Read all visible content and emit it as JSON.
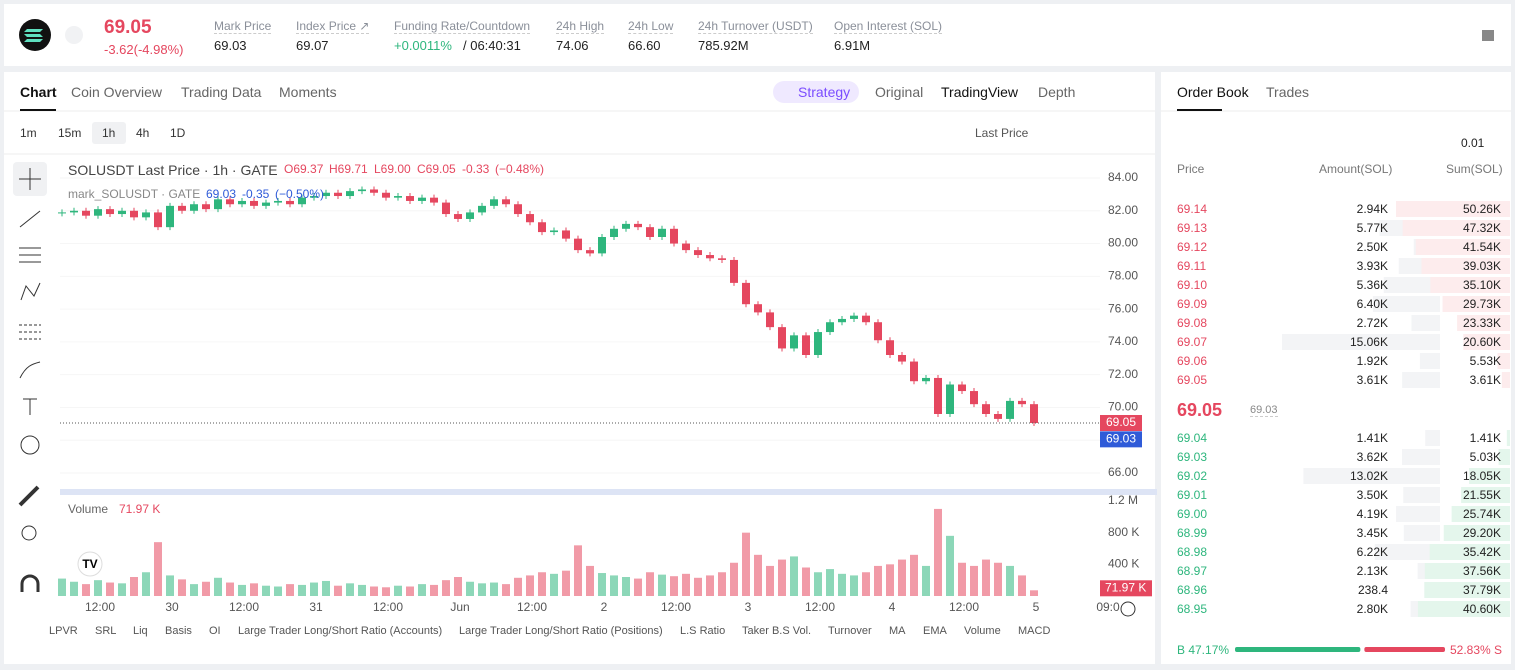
{
  "header": {
    "symbol_price": "69.05",
    "change": "-3.62(-4.98%)",
    "stats": [
      {
        "label": "Mark Price",
        "value": "69.03"
      },
      {
        "label": "Index Price ↗",
        "value": "69.07"
      },
      {
        "label": "Funding Rate/Countdown",
        "value": "+0.0011%",
        "extra": "/ 06:40:31"
      },
      {
        "label": "24h High",
        "value": "74.06"
      },
      {
        "label": "24h Low",
        "value": "66.60"
      },
      {
        "label": "24h Turnover (USDT)",
        "value": "785.92M"
      },
      {
        "label": "Open Interest (SOL)",
        "value": "6.91M"
      }
    ]
  },
  "tabs": [
    "Chart",
    "Coin Overview",
    "Trading Data",
    "Moments"
  ],
  "view_tabs": [
    "Strategy",
    "Original",
    "TradingView",
    "Depth"
  ],
  "timeframes": [
    "1m",
    "15m",
    "1h",
    "4h",
    "1D"
  ],
  "price_type": "Last Price",
  "indicators": [
    "LPVR",
    "SRL",
    "Liq",
    "Basis",
    "OI",
    "Large Trader Long/Short Ratio (Accounts)",
    "Large Trader Long/Short Ratio (Positions)",
    "L.S Ratio",
    "Taker B.S Vol.",
    "Turnover",
    "MA",
    "EMA",
    "Volume",
    "MACD"
  ],
  "chart_data": {
    "type": "candlestick",
    "legend": {
      "title": "SOLUSDT Last Price · 1h · GATE",
      "o": "O69.37",
      "h": "H69.71",
      "l": "L69.00",
      "c": "C69.05",
      "chg": "-0.33",
      "pct": "(−0.48%)",
      "mark": "mark_SOLUSDT · GATE",
      "mark_value": "69.03",
      "mark_chg": "-0.35",
      "mark_pct": "(−0.50%)"
    },
    "close": [
      81.9,
      82.0,
      81.7,
      82.1,
      81.8,
      82.0,
      81.6,
      81.9,
      81.0,
      82.3,
      82.0,
      82.4,
      82.1,
      82.7,
      82.4,
      82.6,
      82.3,
      82.5,
      82.6,
      82.4,
      82.8,
      82.9,
      83.1,
      82.9,
      83.2,
      83.3,
      83.1,
      82.8,
      82.9,
      82.6,
      82.8,
      82.5,
      81.8,
      81.5,
      81.9,
      82.3,
      82.7,
      82.4,
      81.8,
      81.3,
      80.7,
      80.8,
      80.3,
      79.6,
      79.4,
      80.4,
      80.9,
      81.2,
      81.0,
      80.4,
      80.9,
      80.0,
      79.6,
      79.3,
      79.1,
      79.0,
      77.6,
      76.3,
      75.8,
      74.9,
      73.6,
      74.4,
      73.2,
      74.6,
      75.2,
      75.4,
      75.6,
      75.2,
      74.1,
      73.2,
      72.8,
      71.6,
      71.8,
      69.6,
      71.4,
      71.0,
      70.2,
      69.6,
      69.3,
      70.4,
      70.2,
      69.05
    ],
    "volume": [
      220000,
      180000,
      150000,
      200000,
      170000,
      160000,
      240000,
      300000,
      680000,
      260000,
      210000,
      150000,
      180000,
      230000,
      170000,
      140000,
      160000,
      130000,
      120000,
      150000,
      140000,
      170000,
      190000,
      130000,
      160000,
      140000,
      120000,
      110000,
      130000,
      120000,
      150000,
      140000,
      200000,
      240000,
      180000,
      160000,
      170000,
      150000,
      230000,
      260000,
      300000,
      280000,
      320000,
      640000,
      380000,
      290000,
      260000,
      240000,
      220000,
      300000,
      270000,
      250000,
      280000,
      230000,
      260000,
      300000,
      420000,
      800000,
      520000,
      380000,
      460000,
      500000,
      360000,
      300000,
      340000,
      280000,
      260000,
      300000,
      380000,
      400000,
      460000,
      520000,
      380000,
      1100000,
      760000,
      420000,
      380000,
      460000,
      420000,
      380000,
      260000,
      71970
    ],
    "volume_title": "Volume",
    "volume_label": {
      "value": 71970,
      "label": "71.97 K"
    },
    "ylim": [
      66,
      84
    ],
    "yticks": [
      {
        "value": 66,
        "label": "66.00"
      },
      {
        "value": 68,
        "label": "68.00"
      },
      {
        "value": 70,
        "label": "70.00"
      },
      {
        "value": 72,
        "label": "72.00"
      },
      {
        "value": 74,
        "label": "74.00"
      },
      {
        "value": 76,
        "label": "76.00"
      },
      {
        "value": 78,
        "label": "78.00"
      },
      {
        "value": 80,
        "label": "80.00"
      },
      {
        "value": 82,
        "label": "82.00"
      },
      {
        "value": 84,
        "label": "84.00"
      }
    ],
    "vlim": [
      0,
      1200000
    ],
    "vticks": [
      {
        "value": 400000,
        "label": "400 K"
      },
      {
        "value": 800000,
        "label": "800 K"
      },
      {
        "value": 1200000,
        "label": "1.2 M"
      }
    ],
    "last_price": 69.05,
    "mark_price": 69.03,
    "xlabels": [
      "12:00",
      "30",
      "12:00",
      "31",
      "12:00",
      "Jun",
      "12:00",
      "2",
      "12:00",
      "3",
      "12:00",
      "4",
      "12:00",
      "5",
      "09:0"
    ],
    "up_color": "#2eb67d",
    "down_color": "#e5475f"
  },
  "order_book": {
    "tabs": [
      "Order Book",
      "Trades"
    ],
    "precision": "0.01",
    "headers": [
      "Price",
      "Amount(SOL)",
      "Sum(SOL)"
    ],
    "asks": [
      {
        "price": "69.14",
        "amount": {
          "value": 2940,
          "label": "2.94K"
        },
        "sum": {
          "value": 50260,
          "label": "50.26K"
        }
      },
      {
        "price": "69.13",
        "amount": {
          "value": 5770,
          "label": "5.77K"
        },
        "sum": {
          "value": 47320,
          "label": "47.32K"
        }
      },
      {
        "price": "69.12",
        "amount": {
          "value": 2500,
          "label": "2.50K"
        },
        "sum": {
          "value": 41540,
          "label": "41.54K"
        }
      },
      {
        "price": "69.11",
        "amount": {
          "value": 3930,
          "label": "3.93K"
        },
        "sum": {
          "value": 39030,
          "label": "39.03K"
        }
      },
      {
        "price": "69.10",
        "amount": {
          "value": 5360,
          "label": "5.36K"
        },
        "sum": {
          "value": 35100,
          "label": "35.10K"
        }
      },
      {
        "price": "69.09",
        "amount": {
          "value": 6400,
          "label": "6.40K"
        },
        "sum": {
          "value": 29730,
          "label": "29.73K"
        }
      },
      {
        "price": "69.08",
        "amount": {
          "value": 2720,
          "label": "2.72K"
        },
        "sum": {
          "value": 23330,
          "label": "23.33K"
        }
      },
      {
        "price": "69.07",
        "amount": {
          "value": 15060,
          "label": "15.06K"
        },
        "sum": {
          "value": 20600,
          "label": "20.60K"
        }
      },
      {
        "price": "69.06",
        "amount": {
          "value": 1920,
          "label": "1.92K"
        },
        "sum": {
          "value": 5530,
          "label": "5.53K"
        }
      },
      {
        "price": "69.05",
        "amount": {
          "value": 3610,
          "label": "3.61K"
        },
        "sum": {
          "value": 3610,
          "label": "3.61K"
        }
      }
    ],
    "mid_price": "69.05",
    "mid_mark": "69.03",
    "bids": [
      {
        "price": "69.04",
        "amount": {
          "value": 1410,
          "label": "1.41K"
        },
        "sum": {
          "value": 1410,
          "label": "1.41K"
        }
      },
      {
        "price": "69.03",
        "amount": {
          "value": 3620,
          "label": "3.62K"
        },
        "sum": {
          "value": 5030,
          "label": "5.03K"
        }
      },
      {
        "price": "69.02",
        "amount": {
          "value": 13020,
          "label": "13.02K"
        },
        "sum": {
          "value": 18050,
          "label": "18.05K"
        }
      },
      {
        "price": "69.01",
        "amount": {
          "value": 3500,
          "label": "3.50K"
        },
        "sum": {
          "value": 21550,
          "label": "21.55K"
        }
      },
      {
        "price": "69.00",
        "amount": {
          "value": 4190,
          "label": "4.19K"
        },
        "sum": {
          "value": 25740,
          "label": "25.74K"
        }
      },
      {
        "price": "68.99",
        "amount": {
          "value": 3450,
          "label": "3.45K"
        },
        "sum": {
          "value": 29200,
          "label": "29.20K"
        }
      },
      {
        "price": "68.98",
        "amount": {
          "value": 6220,
          "label": "6.22K"
        },
        "sum": {
          "value": 35420,
          "label": "35.42K"
        }
      },
      {
        "price": "68.97",
        "amount": {
          "value": 2130,
          "label": "2.13K"
        },
        "sum": {
          "value": 37560,
          "label": "37.56K"
        }
      },
      {
        "price": "68.96",
        "amount": {
          "value": 238.4,
          "label": "238.4"
        },
        "sum": {
          "value": 37790,
          "label": "37.79K"
        }
      },
      {
        "price": "68.95",
        "amount": {
          "value": 2800,
          "label": "2.80K"
        },
        "sum": {
          "value": 40600,
          "label": "40.60K"
        }
      }
    ],
    "buy_ratio": {
      "value": 47.17,
      "label": "B 47.17%"
    },
    "sell_ratio": {
      "value": 52.83,
      "label": "52.83% S"
    }
  }
}
